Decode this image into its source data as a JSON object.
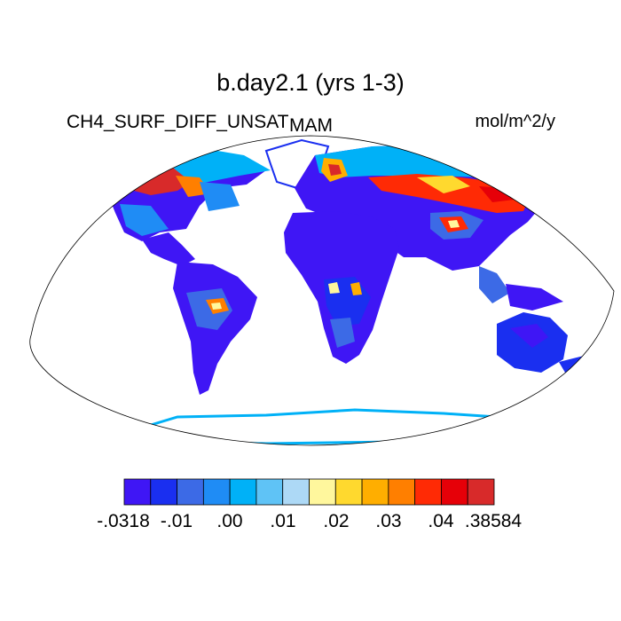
{
  "header": {
    "title": "b.day2.1 (yrs 1-3)",
    "variable": "CH4_SURF_DIFF_UNSAT",
    "season": "MAM",
    "units": "mol/m^2/y"
  },
  "colorbar": {
    "colors": [
      "#3f16f5",
      "#1a2ff0",
      "#3c6ae6",
      "#1f8cf5",
      "#00b1f7",
      "#5fc3f6",
      "#add9f6",
      "#fff79d",
      "#ffd92e",
      "#ffae00",
      "#ff7f00",
      "#ff2a05",
      "#e60008",
      "#d82a2a"
    ],
    "labels": [
      "-.0318",
      "-.01",
      ".00",
      ".01",
      ".02",
      ".03",
      ".04",
      ".38584"
    ]
  }
}
